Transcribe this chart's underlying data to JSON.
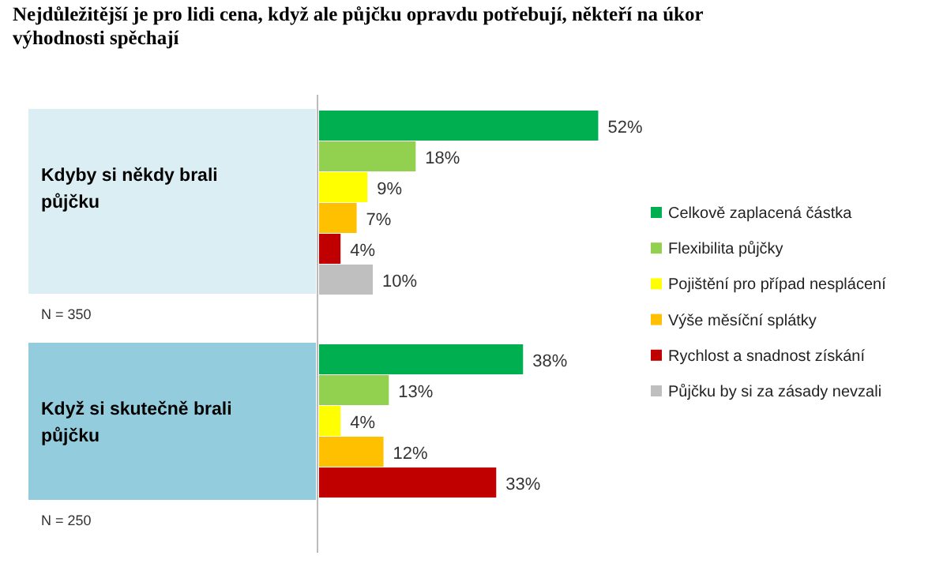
{
  "chart_data": {
    "type": "bar",
    "orientation": "horizontal",
    "title": "Nejdůležitější je pro lidi cena, když ale půjčku opravdu potřebují, někteří na úkor výhodnosti spěchají",
    "categories": [
      "Kdyby si někdy brali půjčku",
      "Když si skutečně brali půjčku"
    ],
    "series": [
      {
        "name": "Celkově zaplacená částka",
        "color": "#00b050",
        "values": [
          52,
          38
        ],
        "value_labels": [
          "52%",
          "38%"
        ]
      },
      {
        "name": "Flexibilita půjčky",
        "color": "#92d050",
        "values": [
          18,
          13
        ],
        "value_labels": [
          "18%",
          "13%"
        ]
      },
      {
        "name": "Pojištění pro případ nesplácení",
        "color": "#ffff00",
        "values": [
          9,
          4
        ],
        "value_labels": [
          "9%",
          "4%"
        ]
      },
      {
        "name": "Výše měsíční splátky",
        "color": "#ffc000",
        "values": [
          7,
          12
        ],
        "value_labels": [
          "7%",
          "12%"
        ]
      },
      {
        "name": "Rychlost a snadnost získání",
        "color": "#c00000",
        "values": [
          4,
          33
        ],
        "value_labels": [
          "4%",
          "33%"
        ]
      },
      {
        "name": "Půjčku by si za zásady nevzali",
        "color": "#bfbfbf",
        "values": [
          10,
          null
        ],
        "value_labels": [
          "10%",
          null
        ]
      }
    ],
    "legend": "right",
    "annotations": [
      "N = 350",
      "N = 250"
    ]
  }
}
